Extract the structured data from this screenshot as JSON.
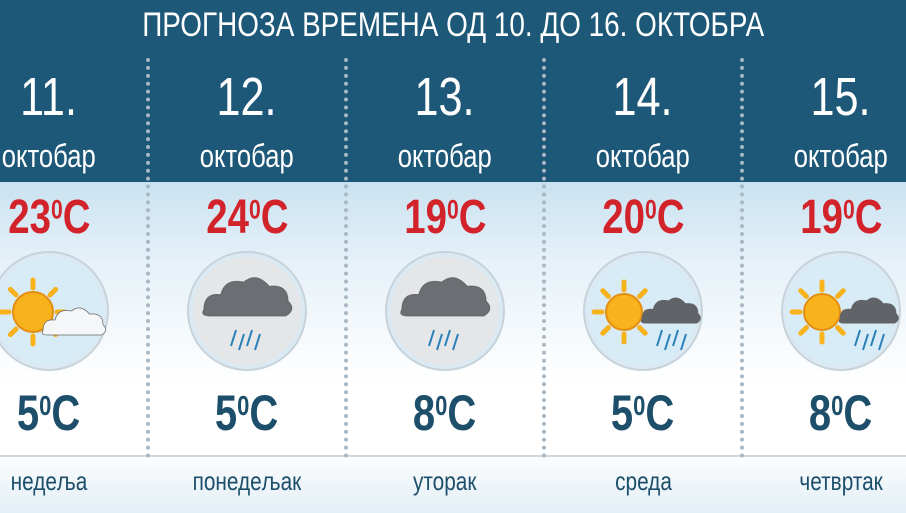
{
  "title": "ПРОГНОЗА ВРЕМЕНА ОД  10. ДО 16. ОКТОБРА",
  "colors": {
    "header": "#1d5878",
    "high_temp": "#d2232a",
    "low_temp": "#1d4f6b"
  },
  "days": [
    {
      "date": "11.",
      "month": "октобар",
      "high": "23",
      "low": "5",
      "unit": "C",
      "deg": "0",
      "weekday": "недеља",
      "icon": "sun-cloud-icon"
    },
    {
      "date": "12.",
      "month": "октобар",
      "high": "24",
      "low": "5",
      "unit": "C",
      "deg": "0",
      "weekday": "понедељак",
      "icon": "rain-cloud-icon"
    },
    {
      "date": "13.",
      "month": "октобар",
      "high": "19",
      "low": "8",
      "unit": "C",
      "deg": "0",
      "weekday": "уторак",
      "icon": "rain-cloud-icon"
    },
    {
      "date": "14.",
      "month": "октобар",
      "high": "20",
      "low": "5",
      "unit": "C",
      "deg": "0",
      "weekday": "среда",
      "icon": "sun-rain-cloud-icon"
    },
    {
      "date": "15.",
      "month": "октобар",
      "high": "19",
      "low": "8",
      "unit": "C",
      "deg": "0",
      "weekday": "четвртак",
      "icon": "sun-rain-cloud-icon"
    }
  ]
}
